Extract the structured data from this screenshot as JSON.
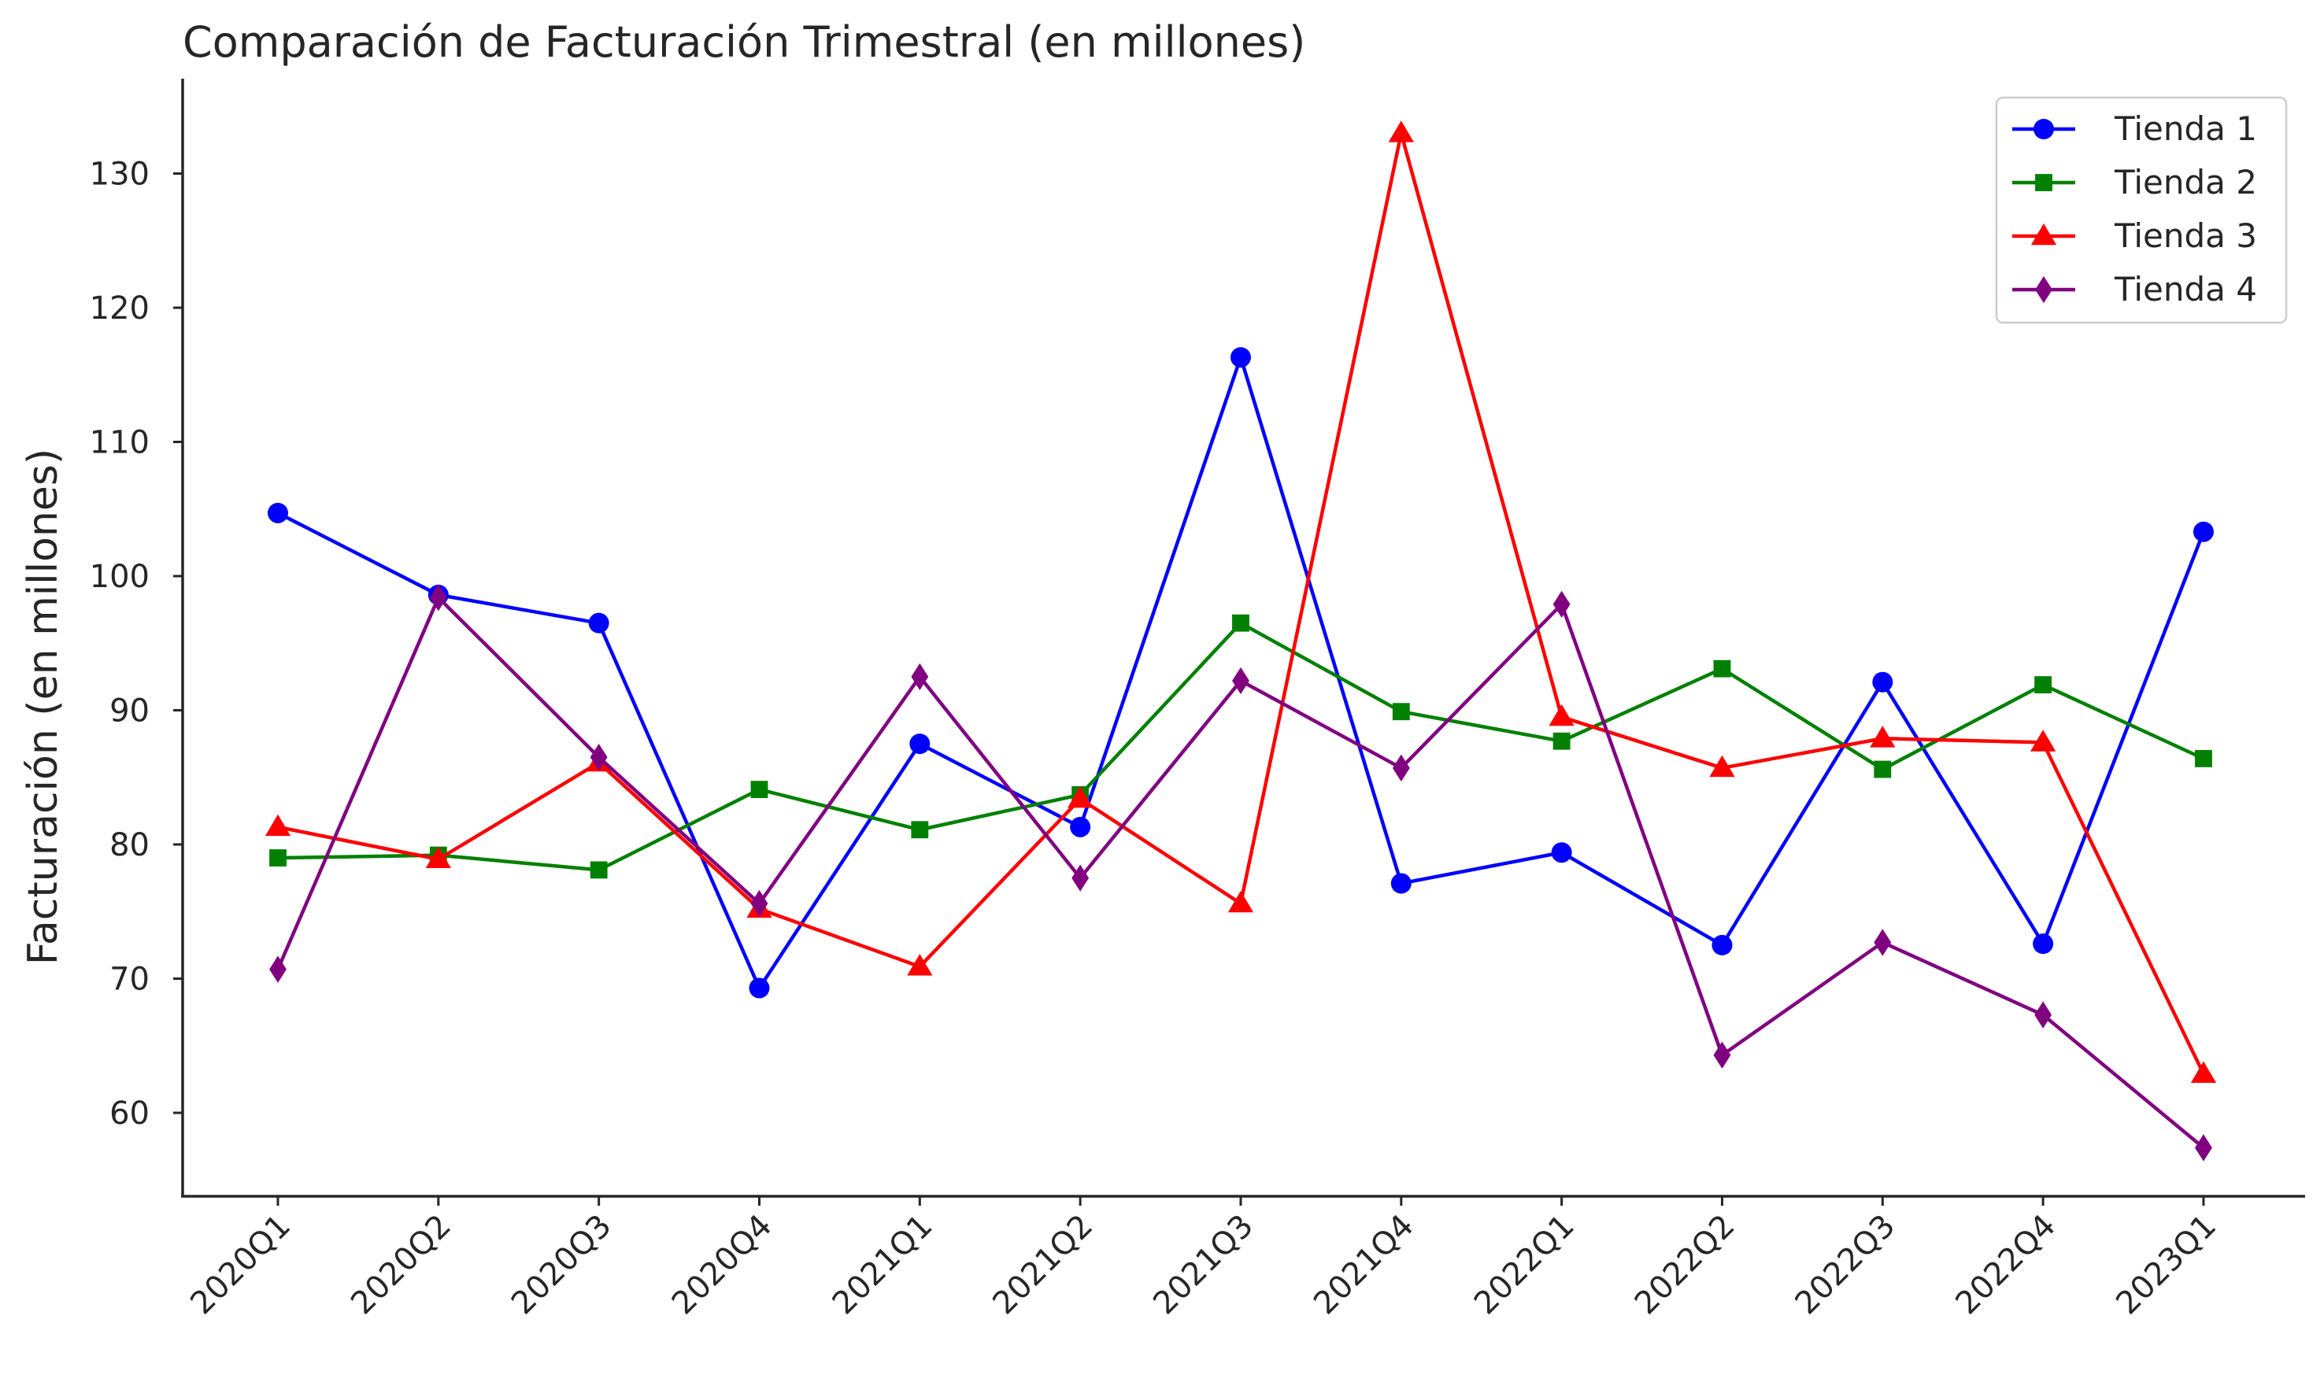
{
  "chart_data": {
    "type": "line",
    "title": "Comparación de Facturación Trimestral (en millones)",
    "xlabel": "",
    "ylabel": "Facturación (en millones)",
    "categories": [
      "2020Q1",
      "2020Q2",
      "2020Q3",
      "2020Q4",
      "2021Q1",
      "2021Q2",
      "2021Q3",
      "2021Q4",
      "2022Q1",
      "2022Q2",
      "2022Q3",
      "2022Q4",
      "2023Q1"
    ],
    "ylim": [
      54,
      137
    ],
    "yticks": [
      60,
      70,
      80,
      90,
      100,
      110,
      120,
      130
    ],
    "grid": false,
    "legend_position": "top-right",
    "series": [
      {
        "name": "Tienda 1",
        "color": "#0000ff",
        "marker": "circle",
        "values": [
          104.7,
          98.6,
          96.5,
          69.3,
          87.5,
          81.3,
          116.3,
          77.1,
          79.4,
          72.5,
          92.1,
          72.6,
          103.3
        ]
      },
      {
        "name": "Tienda 2",
        "color": "#008000",
        "marker": "square",
        "values": [
          79.0,
          79.2,
          78.1,
          84.1,
          81.1,
          83.7,
          96.5,
          89.9,
          87.7,
          93.1,
          85.6,
          91.9,
          86.4
        ]
      },
      {
        "name": "Tienda 3",
        "color": "#ff0000",
        "marker": "triangle",
        "values": [
          81.3,
          78.9,
          86.1,
          75.2,
          70.9,
          83.4,
          75.6,
          133.0,
          89.5,
          85.7,
          87.9,
          87.6,
          62.9
        ]
      },
      {
        "name": "Tienda 4",
        "color": "#800080",
        "marker": "diamond",
        "values": [
          70.7,
          98.4,
          86.5,
          75.6,
          92.5,
          77.5,
          92.2,
          85.7,
          97.9,
          64.3,
          72.7,
          67.3,
          57.4
        ]
      }
    ]
  }
}
